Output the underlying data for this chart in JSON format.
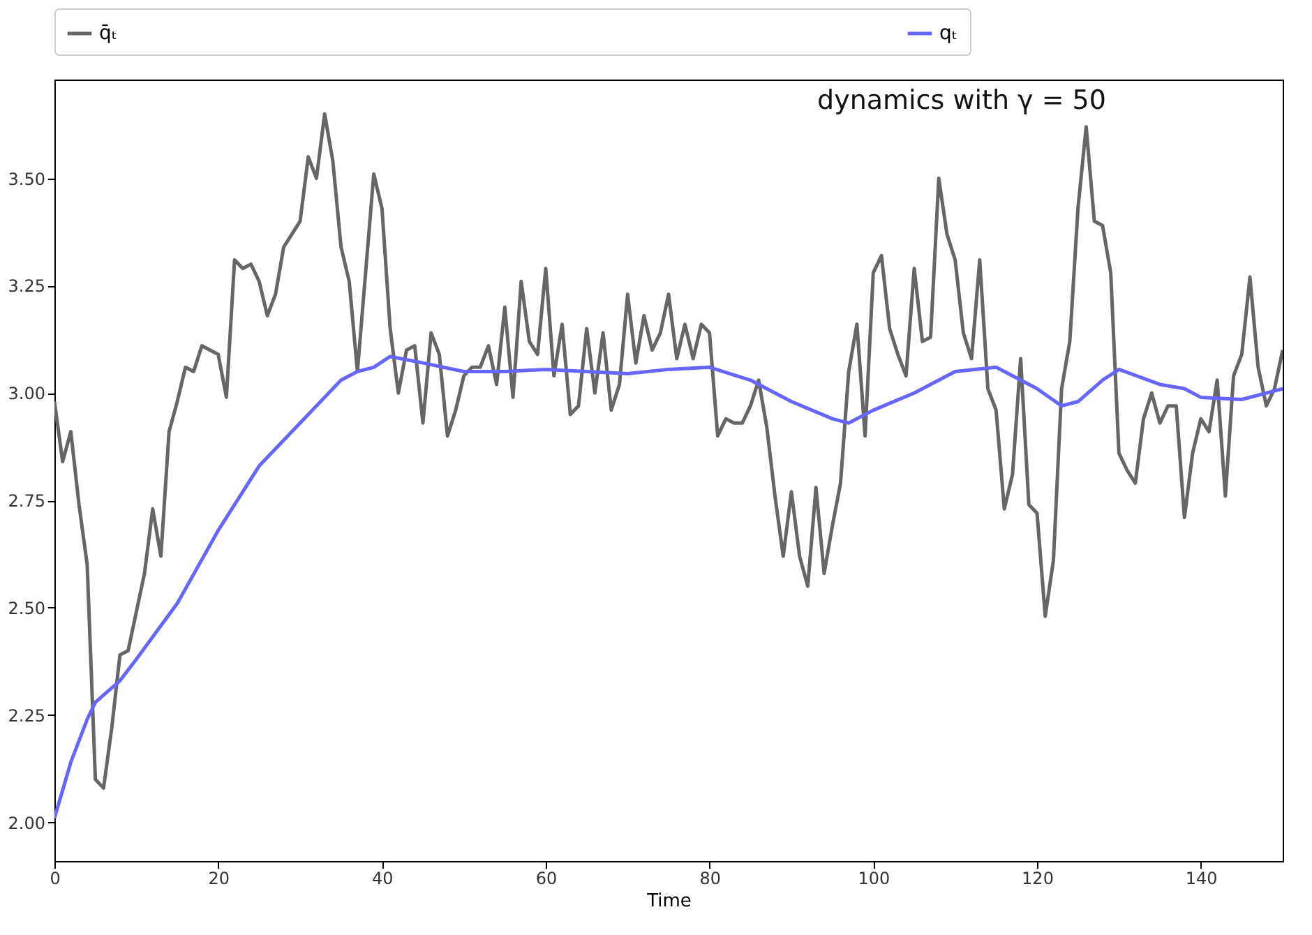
{
  "chart_data": {
    "type": "line",
    "xlabel": "Time",
    "annotations": [
      "dynamics with γ = 50"
    ],
    "legend": "top",
    "grid": false,
    "line_style": "solid",
    "xlim": [
      0,
      150
    ],
    "xticks": [
      0,
      20,
      40,
      60,
      80,
      100,
      120,
      140
    ],
    "ylim": [
      1.91,
      3.73
    ],
    "yticks": [
      {
        "value": 2,
        "label": "2.00"
      },
      {
        "value": 2.25,
        "label": "2.25"
      },
      {
        "value": 2.5,
        "label": "2.50"
      },
      {
        "value": 2.75,
        "label": "2.75"
      },
      {
        "value": 3,
        "label": "3.00"
      },
      {
        "value": 3.25,
        "label": "3.25"
      },
      {
        "value": 3.5,
        "label": "3.50"
      }
    ],
    "x": [
      0,
      1,
      2,
      3,
      4,
      5,
      6,
      7,
      8,
      9,
      10,
      11,
      12,
      13,
      14,
      15,
      16,
      17,
      18,
      19,
      20,
      21,
      22,
      23,
      24,
      25,
      26,
      27,
      28,
      29,
      30,
      31,
      32,
      33,
      34,
      35,
      36,
      37,
      38,
      39,
      40,
      41,
      42,
      43,
      44,
      45,
      46,
      47,
      48,
      49,
      50,
      51,
      52,
      53,
      54,
      55,
      56,
      57,
      58,
      59,
      60,
      61,
      62,
      63,
      64,
      65,
      66,
      67,
      68,
      69,
      70,
      71,
      72,
      73,
      74,
      75,
      76,
      77,
      78,
      79,
      80,
      81,
      82,
      83,
      84,
      85,
      86,
      87,
      88,
      89,
      90,
      91,
      92,
      93,
      94,
      95,
      96,
      97,
      98,
      99,
      100,
      101,
      102,
      103,
      104,
      105,
      106,
      107,
      108,
      109,
      110,
      111,
      112,
      113,
      114,
      115,
      116,
      117,
      118,
      119,
      120,
      121,
      122,
      123,
      124,
      125,
      126,
      127,
      128,
      129,
      130,
      131,
      132,
      133,
      134,
      135,
      136,
      137,
      138,
      139,
      140,
      141,
      142,
      143,
      144,
      145,
      146,
      147,
      148,
      149,
      150
    ],
    "series": [
      {
        "name": "q̄ₜ",
        "color": "#666666",
        "values": [
          2.98,
          2.84,
          2.91,
          2.74,
          2.6,
          2.1,
          2.08,
          2.22,
          2.39,
          2.4,
          2.49,
          2.58,
          2.73,
          2.62,
          2.91,
          2.98,
          3.06,
          3.05,
          3.11,
          3.1,
          3.09,
          2.99,
          3.31,
          3.29,
          3.3,
          3.26,
          3.18,
          3.23,
          3.34,
          3.37,
          3.4,
          3.55,
          3.5,
          3.65,
          3.54,
          3.34,
          3.26,
          3.05,
          3.28,
          3.51,
          3.43,
          3.15,
          3.0,
          3.1,
          3.11,
          2.93,
          3.14,
          3.09,
          2.9,
          2.96,
          3.04,
          3.06,
          3.06,
          3.11,
          3.02,
          3.2,
          2.99,
          3.26,
          3.12,
          3.09,
          3.29,
          3.04,
          3.16,
          2.95,
          2.97,
          3.15,
          3.0,
          3.14,
          2.96,
          3.02,
          3.23,
          3.07,
          3.18,
          3.1,
          3.14,
          3.23,
          3.08,
          3.16,
          3.08,
          3.16,
          3.14,
          2.9,
          2.94,
          2.93,
          2.93,
          2.97,
          3.03,
          2.92,
          2.76,
          2.62,
          2.77,
          2.62,
          2.55,
          2.78,
          2.58,
          2.69,
          2.79,
          3.05,
          3.16,
          2.9,
          3.28,
          3.32,
          3.15,
          3.09,
          3.04,
          3.29,
          3.12,
          3.13,
          3.5,
          3.37,
          3.31,
          3.14,
          3.08,
          3.31,
          3.01,
          2.96,
          2.73,
          2.81,
          3.08,
          2.74,
          2.72,
          2.48,
          2.61,
          3.01,
          3.12,
          3.43,
          3.62,
          3.4,
          3.39,
          3.28,
          2.86,
          2.82,
          2.79,
          2.94,
          3.0,
          2.93,
          2.97,
          2.97,
          2.71,
          2.86,
          2.94,
          2.91,
          3.03,
          2.76,
          3.04,
          3.09,
          3.27,
          3.06,
          2.97,
          3.01,
          3.1
        ]
      },
      {
        "name": "qₜ",
        "color": "#6666ff",
        "x": [
          0,
          2,
          4,
          5,
          8,
          10,
          15,
          20,
          25,
          30,
          33,
          35,
          37,
          39,
          41,
          45,
          50,
          55,
          60,
          65,
          70,
          75,
          80,
          85,
          90,
          95,
          97,
          100,
          105,
          110,
          115,
          118,
          120,
          123,
          125,
          128,
          130,
          135,
          138,
          140,
          145,
          150
        ],
        "values": [
          2.01,
          2.14,
          2.24,
          2.28,
          2.33,
          2.38,
          2.51,
          2.68,
          2.83,
          2.93,
          2.99,
          3.03,
          3.05,
          3.06,
          3.085,
          3.07,
          3.05,
          3.05,
          3.055,
          3.05,
          3.045,
          3.055,
          3.06,
          3.03,
          2.98,
          2.94,
          2.93,
          2.96,
          3.0,
          3.05,
          3.06,
          3.03,
          3.01,
          2.97,
          2.98,
          3.03,
          3.055,
          3.02,
          3.01,
          2.99,
          2.985,
          3.01
        ]
      }
    ]
  }
}
